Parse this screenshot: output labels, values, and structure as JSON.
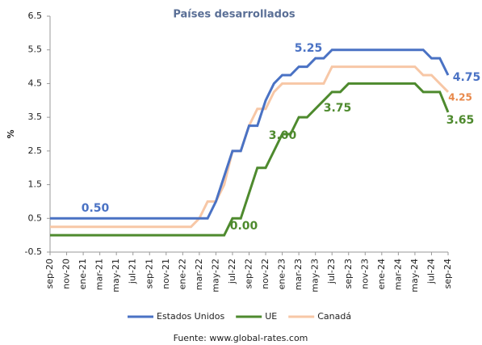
{
  "chart_data": {
    "type": "line",
    "title": "Países desarrollados",
    "ylabel": "%",
    "source": "Fuente: www.global-rates.com",
    "categories": [
      "sep-20",
      null,
      "nov-20",
      null,
      "ene-21",
      null,
      "mar-21",
      null,
      "may-21",
      null,
      "jul-21",
      null,
      "sep-21",
      null,
      "nov-21",
      null,
      "ene-22",
      null,
      "mar-22",
      null,
      "may-22",
      null,
      "jul-22",
      null,
      "sep-22",
      null,
      "nov-22",
      null,
      "ene-23",
      null,
      "mar-23",
      null,
      "may-23",
      null,
      "jul-23",
      null,
      "sep-23",
      null,
      "nov-23",
      null,
      "ene-24",
      null,
      "mar-24",
      null,
      "may-24",
      null,
      "jul-24",
      null,
      "sep-24"
    ],
    "series": [
      {
        "name": "Estados Unidos",
        "color": "#4a72c4",
        "values": [
          0.5,
          0.5,
          0.5,
          0.5,
          0.5,
          0.5,
          0.5,
          0.5,
          0.5,
          0.5,
          0.5,
          0.5,
          0.5,
          0.5,
          0.5,
          0.5,
          0.5,
          0.5,
          0.5,
          0.5,
          1.0,
          1.75,
          2.5,
          2.5,
          3.25,
          3.25,
          4.0,
          4.5,
          4.75,
          4.75,
          5.0,
          5.0,
          5.25,
          5.25,
          5.5,
          5.5,
          5.5,
          5.5,
          5.5,
          5.5,
          5.5,
          5.5,
          5.5,
          5.5,
          5.5,
          5.5,
          5.25,
          5.25,
          4.75
        ]
      },
      {
        "name": "UE",
        "color": "#4e8a2e",
        "values": [
          0,
          0,
          0,
          0,
          0,
          0,
          0,
          0,
          0,
          0,
          0,
          0,
          0,
          0,
          0,
          0,
          0,
          0,
          0,
          0,
          0,
          0,
          0.5,
          0.5,
          1.25,
          2.0,
          2.0,
          2.5,
          3.0,
          3.0,
          3.5,
          3.5,
          3.75,
          4.0,
          4.25,
          4.25,
          4.5,
          4.5,
          4.5,
          4.5,
          4.5,
          4.5,
          4.5,
          4.5,
          4.5,
          4.25,
          4.25,
          4.25,
          3.65
        ]
      },
      {
        "name": "Canadá",
        "color": "#f7c7a6",
        "values": [
          0.25,
          0.25,
          0.25,
          0.25,
          0.25,
          0.25,
          0.25,
          0.25,
          0.25,
          0.25,
          0.25,
          0.25,
          0.25,
          0.25,
          0.25,
          0.25,
          0.25,
          0.25,
          0.5,
          1.0,
          1.0,
          1.5,
          2.5,
          2.5,
          3.25,
          3.75,
          3.75,
          4.25,
          4.5,
          4.5,
          4.5,
          4.5,
          4.5,
          4.5,
          5.0,
          5.0,
          5.0,
          5.0,
          5.0,
          5.0,
          5.0,
          5.0,
          5.0,
          5.0,
          5.0,
          4.75,
          4.75,
          4.5,
          4.25
        ]
      }
    ],
    "annotations": [
      {
        "text": "0.50",
        "color": "#4a72c4"
      },
      {
        "text": "5.25",
        "color": "#4a72c4"
      },
      {
        "text": "4.75",
        "color": "#4a72c4"
      },
      {
        "text": "4.25",
        "color": "#e8884a"
      },
      {
        "text": "3.75",
        "color": "#4e8a2e"
      },
      {
        "text": "3.00",
        "color": "#4e8a2e"
      },
      {
        "text": "0.00",
        "color": "#4e8a2e"
      },
      {
        "text": "3.65",
        "color": "#4e8a2e"
      }
    ],
    "ylim": [
      -0.5,
      6.5
    ],
    "yticks": [
      -0.5,
      0.5,
      1.5,
      2.5,
      3.5,
      4.5,
      5.5,
      6.5
    ],
    "grid": false
  }
}
